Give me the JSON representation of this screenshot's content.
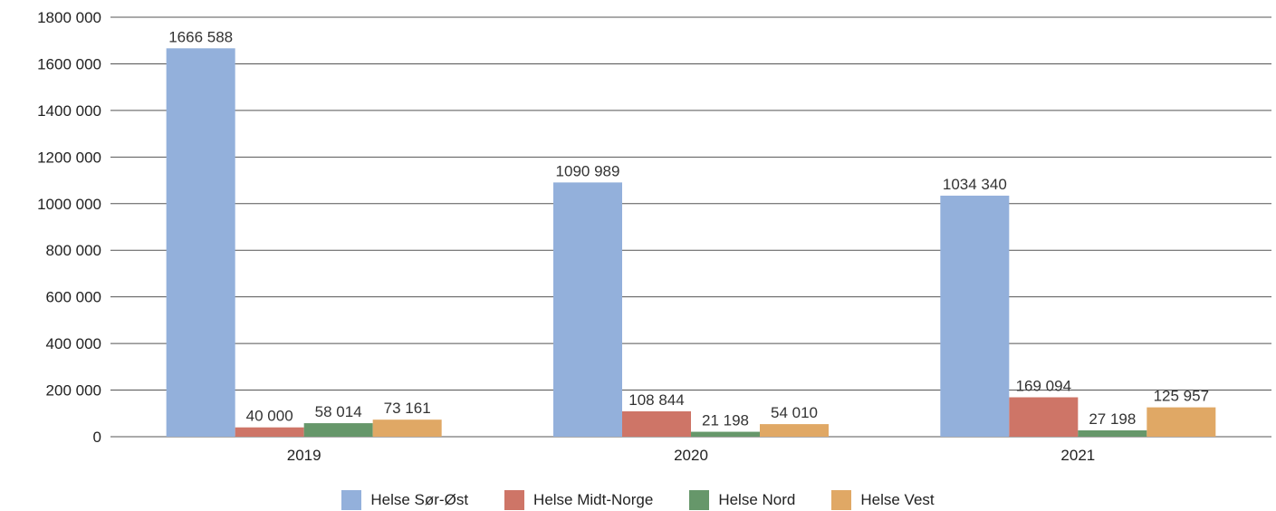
{
  "chart_data": {
    "type": "bar",
    "title": "",
    "xlabel": "",
    "ylabel": "",
    "categories": [
      "2019",
      "2020",
      "2021"
    ],
    "ylim": [
      0,
      1800000
    ],
    "yticks": [
      0,
      200000,
      400000,
      600000,
      800000,
      1000000,
      1200000,
      1400000,
      1600000,
      1800000
    ],
    "ytick_labels": [
      "0",
      "200 000",
      "400 000",
      "600 000",
      "800 000",
      "1000 000",
      "1200 000",
      "1400 000",
      "1600 000",
      "1800 000"
    ],
    "grid": true,
    "legend_position": "bottom",
    "series": [
      {
        "name": "Helse Sør-Øst",
        "color": "#93B0DB",
        "values": [
          1666588,
          1090989,
          1034340
        ],
        "labels": [
          "1666 588",
          "1090 989",
          "1034 340"
        ]
      },
      {
        "name": "Helse Midt-Norge",
        "color": "#CE7567",
        "values": [
          40000,
          108844,
          169094
        ],
        "labels": [
          "40 000",
          "108 844",
          "169 094"
        ]
      },
      {
        "name": "Helse Nord",
        "color": "#66976A",
        "values": [
          58014,
          21198,
          27198
        ],
        "labels": [
          "58 014",
          "21 198",
          "27 198"
        ]
      },
      {
        "name": "Helse Vest",
        "color": "#E0A865",
        "values": [
          73161,
          54010,
          125957
        ],
        "labels": [
          "73 161",
          "54 010",
          "125 957"
        ]
      }
    ]
  }
}
